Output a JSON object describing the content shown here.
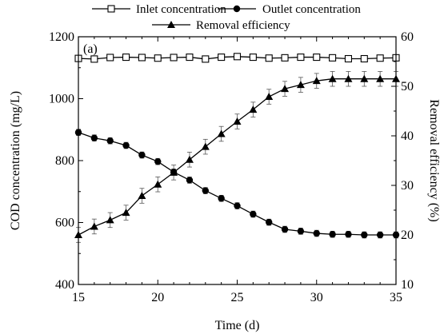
{
  "chart_data": {
    "type": "line",
    "panel_label": "(a)",
    "xlabel": "Time (d)",
    "ylabel_left": "COD concentration (mg/L)",
    "ylabel_right": "Removal efficiency (%)",
    "xlim": [
      15,
      35
    ],
    "ylim_left": [
      400,
      1200
    ],
    "ylim_right": [
      10,
      60
    ],
    "x_ticks": [
      15,
      20,
      25,
      30,
      35
    ],
    "y_ticks_left": [
      400,
      600,
      800,
      1000,
      1200
    ],
    "y_ticks_right": [
      10,
      20,
      30,
      40,
      50,
      60
    ],
    "x_minor_step": 1,
    "legend_position": "top",
    "x": [
      15,
      16,
      17,
      18,
      19,
      20,
      21,
      22,
      23,
      24,
      25,
      26,
      27,
      28,
      29,
      30,
      31,
      32,
      33,
      34,
      35
    ],
    "series": [
      {
        "name": "Inlet concentration",
        "marker": "open-square",
        "axis": "left",
        "values": [
          1130,
          1128,
          1133,
          1134,
          1133,
          1131,
          1133,
          1134,
          1128,
          1134,
          1136,
          1134,
          1131,
          1132,
          1134,
          1134,
          1132,
          1129,
          1129,
          1131,
          1132
        ],
        "errors": [
          8,
          8,
          8,
          8,
          8,
          8,
          8,
          8,
          8,
          8,
          8,
          8,
          8,
          8,
          8,
          8,
          8,
          8,
          8,
          8,
          8
        ]
      },
      {
        "name": "Outlet concentration",
        "marker": "filled-circle",
        "axis": "left",
        "values": [
          891,
          873,
          864,
          849,
          818,
          797,
          763,
          737,
          703,
          678,
          654,
          627,
          601,
          578,
          572,
          565,
          562,
          562,
          560,
          560,
          560
        ],
        "errors": [
          10,
          10,
          10,
          10,
          10,
          10,
          10,
          10,
          10,
          10,
          10,
          10,
          10,
          10,
          10,
          10,
          10,
          10,
          10,
          10,
          10
        ]
      },
      {
        "name": "Removal efficiency",
        "marker": "filled-triangle",
        "axis": "right",
        "values": [
          20,
          21.7,
          23,
          24.5,
          27.9,
          30.2,
          32.6,
          35.2,
          37.8,
          40.4,
          42.9,
          45.3,
          47.9,
          49.5,
          50.3,
          51.1,
          51.5,
          51.5,
          51.5,
          51.5,
          51.5
        ],
        "errors": [
          1.5,
          1.5,
          1.5,
          1.5,
          1.5,
          1.5,
          1.5,
          1.5,
          1.5,
          1.5,
          1.5,
          1.5,
          1.5,
          1.5,
          1.5,
          1.5,
          1.5,
          1.5,
          1.5,
          1.5,
          1.5
        ]
      }
    ]
  }
}
